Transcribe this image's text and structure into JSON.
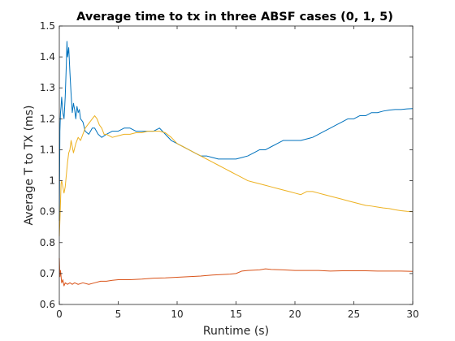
{
  "chart_data": {
    "type": "line",
    "title": "Average time to tx in three ABSF cases (0, 1, 5)",
    "xlabel": "Runtime (s)",
    "ylabel": "Average T to TX (ms)",
    "xlim": [
      0,
      30
    ],
    "ylim": [
      0.6,
      1.5
    ],
    "xticks": [
      0,
      5,
      10,
      15,
      20,
      25,
      30
    ],
    "yticks": [
      0.6,
      0.7,
      0.8,
      0.9,
      1,
      1.1,
      1.2,
      1.3,
      1.4,
      1.5
    ],
    "grid": false,
    "legend": "none",
    "series": [
      {
        "color": "#0072BD",
        "points": [
          [
            0.0,
            0.87
          ],
          [
            0.05,
            1.16
          ],
          [
            0.1,
            1.22
          ],
          [
            0.15,
            1.24
          ],
          [
            0.2,
            1.27
          ],
          [
            0.3,
            1.22
          ],
          [
            0.4,
            1.2
          ],
          [
            0.5,
            1.27
          ],
          [
            0.6,
            1.38
          ],
          [
            0.65,
            1.45
          ],
          [
            0.7,
            1.4
          ],
          [
            0.8,
            1.43
          ],
          [
            0.9,
            1.35
          ],
          [
            1.0,
            1.28
          ],
          [
            1.1,
            1.22
          ],
          [
            1.2,
            1.25
          ],
          [
            1.3,
            1.23
          ],
          [
            1.4,
            1.2
          ],
          [
            1.5,
            1.24
          ],
          [
            1.6,
            1.22
          ],
          [
            1.7,
            1.23
          ],
          [
            1.8,
            1.2
          ],
          [
            2.0,
            1.19
          ],
          [
            2.2,
            1.16
          ],
          [
            2.5,
            1.15
          ],
          [
            2.8,
            1.17
          ],
          [
            3.0,
            1.17
          ],
          [
            3.3,
            1.15
          ],
          [
            3.6,
            1.14
          ],
          [
            4.0,
            1.15
          ],
          [
            4.5,
            1.16
          ],
          [
            5.0,
            1.16
          ],
          [
            5.5,
            1.17
          ],
          [
            6.0,
            1.17
          ],
          [
            6.5,
            1.16
          ],
          [
            7.0,
            1.16
          ],
          [
            7.5,
            1.16
          ],
          [
            8.0,
            1.16
          ],
          [
            8.5,
            1.17
          ],
          [
            9.0,
            1.15
          ],
          [
            9.5,
            1.13
          ],
          [
            10.0,
            1.12
          ],
          [
            10.5,
            1.11
          ],
          [
            11.0,
            1.1
          ],
          [
            11.5,
            1.09
          ],
          [
            12.0,
            1.08
          ],
          [
            12.5,
            1.08
          ],
          [
            13.0,
            1.075
          ],
          [
            13.5,
            1.07
          ],
          [
            14.0,
            1.07
          ],
          [
            14.5,
            1.07
          ],
          [
            15.0,
            1.07
          ],
          [
            15.5,
            1.075
          ],
          [
            16.0,
            1.08
          ],
          [
            16.5,
            1.09
          ],
          [
            17.0,
            1.1
          ],
          [
            17.5,
            1.1
          ],
          [
            18.0,
            1.11
          ],
          [
            18.5,
            1.12
          ],
          [
            19.0,
            1.13
          ],
          [
            19.5,
            1.13
          ],
          [
            20.0,
            1.13
          ],
          [
            20.5,
            1.13
          ],
          [
            21.0,
            1.135
          ],
          [
            21.5,
            1.14
          ],
          [
            22.0,
            1.15
          ],
          [
            22.5,
            1.16
          ],
          [
            23.0,
            1.17
          ],
          [
            23.5,
            1.18
          ],
          [
            24.0,
            1.19
          ],
          [
            24.5,
            1.2
          ],
          [
            25.0,
            1.2
          ],
          [
            25.5,
            1.21
          ],
          [
            26.0,
            1.21
          ],
          [
            26.5,
            1.22
          ],
          [
            27.0,
            1.22
          ],
          [
            27.5,
            1.225
          ],
          [
            28.0,
            1.228
          ],
          [
            28.5,
            1.23
          ],
          [
            29.0,
            1.23
          ],
          [
            29.5,
            1.232
          ],
          [
            30.0,
            1.233
          ]
        ]
      },
      {
        "color": "#D95319",
        "points": [
          [
            0.0,
            0.75
          ],
          [
            0.05,
            0.69
          ],
          [
            0.1,
            0.71
          ],
          [
            0.2,
            0.67
          ],
          [
            0.3,
            0.68
          ],
          [
            0.4,
            0.66
          ],
          [
            0.5,
            0.67
          ],
          [
            0.7,
            0.665
          ],
          [
            0.9,
            0.67
          ],
          [
            1.1,
            0.665
          ],
          [
            1.3,
            0.67
          ],
          [
            1.6,
            0.665
          ],
          [
            2.0,
            0.67
          ],
          [
            2.5,
            0.665
          ],
          [
            3.0,
            0.67
          ],
          [
            3.5,
            0.675
          ],
          [
            4.0,
            0.675
          ],
          [
            4.5,
            0.678
          ],
          [
            5.0,
            0.68
          ],
          [
            6.0,
            0.68
          ],
          [
            7.0,
            0.682
          ],
          [
            8.0,
            0.685
          ],
          [
            9.0,
            0.686
          ],
          [
            10.0,
            0.688
          ],
          [
            11.0,
            0.69
          ],
          [
            12.0,
            0.692
          ],
          [
            13.0,
            0.695
          ],
          [
            14.0,
            0.697
          ],
          [
            14.5,
            0.698
          ],
          [
            15.0,
            0.7
          ],
          [
            15.5,
            0.708
          ],
          [
            16.0,
            0.71
          ],
          [
            17.0,
            0.712
          ],
          [
            17.5,
            0.715
          ],
          [
            18.0,
            0.713
          ],
          [
            19.0,
            0.712
          ],
          [
            20.0,
            0.71
          ],
          [
            21.0,
            0.71
          ],
          [
            22.0,
            0.71
          ],
          [
            23.0,
            0.708
          ],
          [
            24.0,
            0.709
          ],
          [
            25.0,
            0.709
          ],
          [
            26.0,
            0.709
          ],
          [
            27.0,
            0.708
          ],
          [
            28.0,
            0.708
          ],
          [
            29.0,
            0.708
          ],
          [
            30.0,
            0.707
          ]
        ]
      },
      {
        "color": "#EDB120",
        "points": [
          [
            0.0,
            0.82
          ],
          [
            0.05,
            0.87
          ],
          [
            0.1,
            0.93
          ],
          [
            0.15,
            0.99
          ],
          [
            0.2,
            1.0
          ],
          [
            0.3,
            0.98
          ],
          [
            0.4,
            0.96
          ],
          [
            0.5,
            0.98
          ],
          [
            0.6,
            1.02
          ],
          [
            0.7,
            1.06
          ],
          [
            0.8,
            1.09
          ],
          [
            0.9,
            1.1
          ],
          [
            1.0,
            1.13
          ],
          [
            1.2,
            1.09
          ],
          [
            1.4,
            1.12
          ],
          [
            1.6,
            1.14
          ],
          [
            1.8,
            1.13
          ],
          [
            2.0,
            1.15
          ],
          [
            2.2,
            1.17
          ],
          [
            2.4,
            1.18
          ],
          [
            2.6,
            1.19
          ],
          [
            2.8,
            1.2
          ],
          [
            3.0,
            1.21
          ],
          [
            3.2,
            1.2
          ],
          [
            3.4,
            1.18
          ],
          [
            3.6,
            1.17
          ],
          [
            3.8,
            1.15
          ],
          [
            4.0,
            1.15
          ],
          [
            4.5,
            1.14
          ],
          [
            5.0,
            1.145
          ],
          [
            5.5,
            1.15
          ],
          [
            6.0,
            1.15
          ],
          [
            6.5,
            1.155
          ],
          [
            7.0,
            1.155
          ],
          [
            7.5,
            1.16
          ],
          [
            8.0,
            1.16
          ],
          [
            8.5,
            1.16
          ],
          [
            9.0,
            1.155
          ],
          [
            9.5,
            1.14
          ],
          [
            10.0,
            1.12
          ],
          [
            10.5,
            1.11
          ],
          [
            11.0,
            1.1
          ],
          [
            11.5,
            1.09
          ],
          [
            12.0,
            1.08
          ],
          [
            12.5,
            1.07
          ],
          [
            13.0,
            1.06
          ],
          [
            13.5,
            1.05
          ],
          [
            14.0,
            1.04
          ],
          [
            14.5,
            1.03
          ],
          [
            15.0,
            1.02
          ],
          [
            15.5,
            1.01
          ],
          [
            16.0,
            1.0
          ],
          [
            16.5,
            0.995
          ],
          [
            17.0,
            0.99
          ],
          [
            17.5,
            0.985
          ],
          [
            18.0,
            0.98
          ],
          [
            18.5,
            0.975
          ],
          [
            19.0,
            0.97
          ],
          [
            19.5,
            0.965
          ],
          [
            20.0,
            0.96
          ],
          [
            20.5,
            0.955
          ],
          [
            21.0,
            0.965
          ],
          [
            21.5,
            0.965
          ],
          [
            22.0,
            0.96
          ],
          [
            22.5,
            0.955
          ],
          [
            23.0,
            0.95
          ],
          [
            23.5,
            0.945
          ],
          [
            24.0,
            0.94
          ],
          [
            24.5,
            0.935
          ],
          [
            25.0,
            0.93
          ],
          [
            25.5,
            0.925
          ],
          [
            26.0,
            0.92
          ],
          [
            26.5,
            0.918
          ],
          [
            27.0,
            0.915
          ],
          [
            27.5,
            0.912
          ],
          [
            28.0,
            0.91
          ],
          [
            28.5,
            0.906
          ],
          [
            29.0,
            0.903
          ],
          [
            29.5,
            0.901
          ],
          [
            30.0,
            0.9
          ]
        ]
      }
    ]
  }
}
